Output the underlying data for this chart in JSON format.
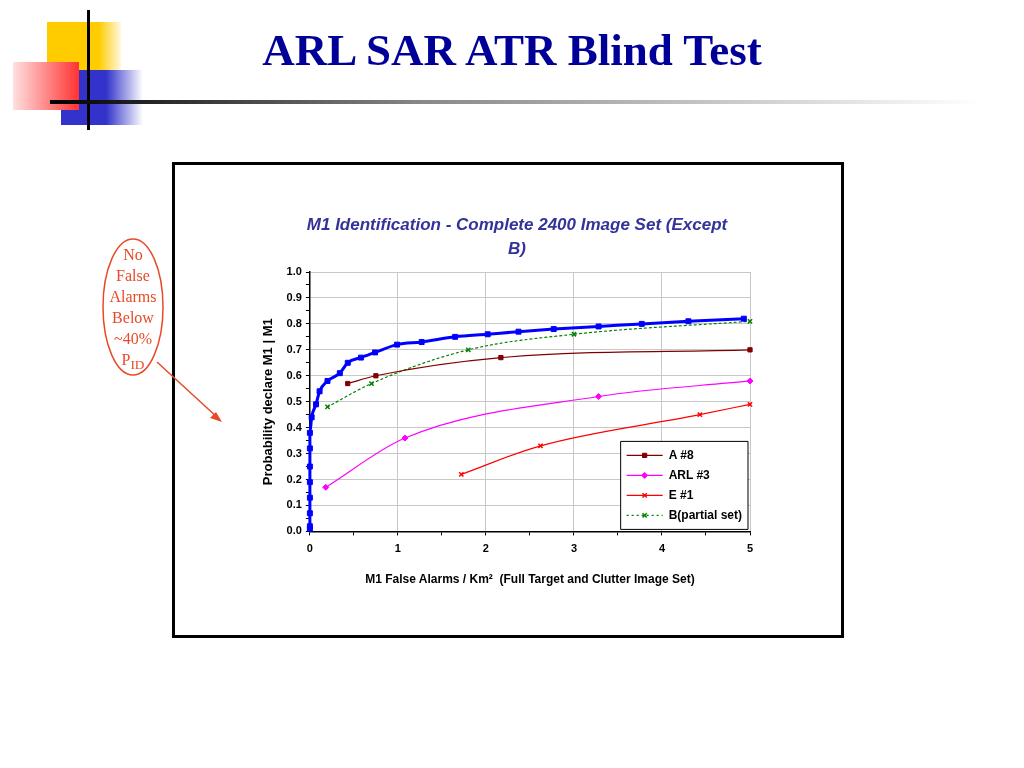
{
  "chart_data": {
    "type": "line",
    "title": "ARL SAR ATR Blind Test",
    "subtitle": "M1 Identification - Complete 2400 Image Set (Except B)",
    "xlabel": "M1 False Alarms / Km²  (Full Target and Clutter Image Set)",
    "ylabel": "Probability declare M1 | M1",
    "annotations": [
      "No False Alarms Below ~40% P$_{ID}$"
    ],
    "xlim": [
      0,
      5
    ],
    "xticks": [
      0,
      {
        "value": 0.5,
        "label": null
      },
      1,
      {
        "value": 1.5,
        "label": null
      },
      2,
      {
        "value": 2.5,
        "label": null
      },
      3,
      {
        "value": 3.5,
        "label": null
      },
      4,
      {
        "value": 4.5,
        "label": null
      },
      5
    ],
    "ylim": [
      0,
      1
    ],
    "yticks": [
      {
        "value": 0,
        "label": "0.0"
      },
      {
        "value": 0.05,
        "label": null
      },
      0.1,
      {
        "value": 0.15,
        "label": null
      },
      0.2,
      {
        "value": 0.25,
        "label": null
      },
      0.3,
      {
        "value": 0.35,
        "label": null
      },
      0.4,
      {
        "value": 0.45,
        "label": null
      },
      0.5,
      {
        "value": 0.55,
        "label": null
      },
      0.6,
      {
        "value": 0.65,
        "label": null
      },
      0.7,
      {
        "value": 0.75,
        "label": null
      },
      0.8,
      {
        "value": 0.85,
        "label": null
      },
      0.9,
      {
        "value": 0.95,
        "label": null
      },
      {
        "value": 1,
        "label": "1.0"
      }
    ],
    "grid": true,
    "legend": "bottom right",
    "series": [
      {
        "color": "#0000ff",
        "marker": "square",
        "line_style": "solid",
        "x": [
          0,
          0,
          0,
          0,
          0,
          0,
          0,
          0,
          0.02,
          0.07,
          0.11,
          0.2,
          0.34,
          0.43,
          0.58,
          0.74,
          0.99,
          1.27,
          1.65,
          2.02,
          2.37,
          2.77,
          3.28,
          3.77,
          4.3,
          4.93
        ],
        "values": [
          0.01,
          0.02,
          0.07,
          0.13,
          0.19,
          0.25,
          0.32,
          0.38,
          0.44,
          0.49,
          0.54,
          0.58,
          0.61,
          0.65,
          0.67,
          0.69,
          0.72,
          0.73,
          0.75,
          0.76,
          0.77,
          0.78,
          0.79,
          0.8,
          0.81,
          0.82
        ]
      },
      {
        "name": "A #8",
        "color": "#800000",
        "marker": "square",
        "line_style": "solid",
        "x": [
          0.43,
          0.75,
          2.17,
          5
        ],
        "values": [
          0.57,
          0.6,
          0.67,
          0.7
        ]
      },
      {
        "name": "ARL #3",
        "color": "#ff00ff",
        "marker": "diamond",
        "line_style": "solid",
        "x": [
          0.18,
          1.08,
          3.28,
          5
        ],
        "values": [
          0.17,
          0.36,
          0.52,
          0.58
        ]
      },
      {
        "name": "E #1",
        "color": "#ff0000",
        "marker": "cross",
        "line_style": "solid",
        "x": [
          1.72,
          2.62,
          4.43,
          5
        ],
        "values": [
          0.22,
          0.33,
          0.45,
          0.49
        ]
      },
      {
        "name": "B(partial set)",
        "color": "#008000",
        "marker": "cross",
        "line_style": "dotted",
        "x": [
          0.2,
          0.7,
          1.8,
          3,
          5
        ],
        "values": [
          0.48,
          0.57,
          0.7,
          0.76,
          0.81
        ]
      }
    ]
  }
}
